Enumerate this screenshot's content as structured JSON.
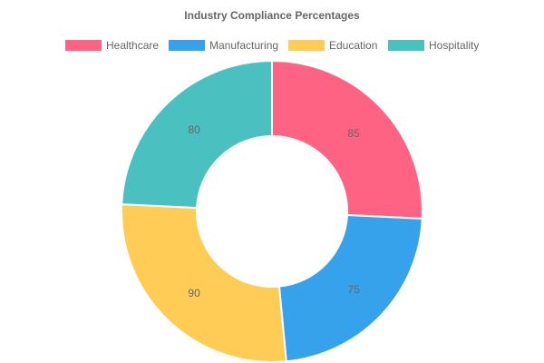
{
  "chart_data": {
    "type": "pie",
    "variant": "doughnut",
    "title": "Industry Compliance Percentages",
    "legend_position": "top",
    "categories": [
      "Healthcare",
      "Manufacturing",
      "Education",
      "Hospitality"
    ],
    "values": [
      85,
      75,
      90,
      80
    ],
    "colors": [
      "#ff6384",
      "#36a2eb",
      "#ffcd56",
      "#4bc0c0"
    ]
  }
}
